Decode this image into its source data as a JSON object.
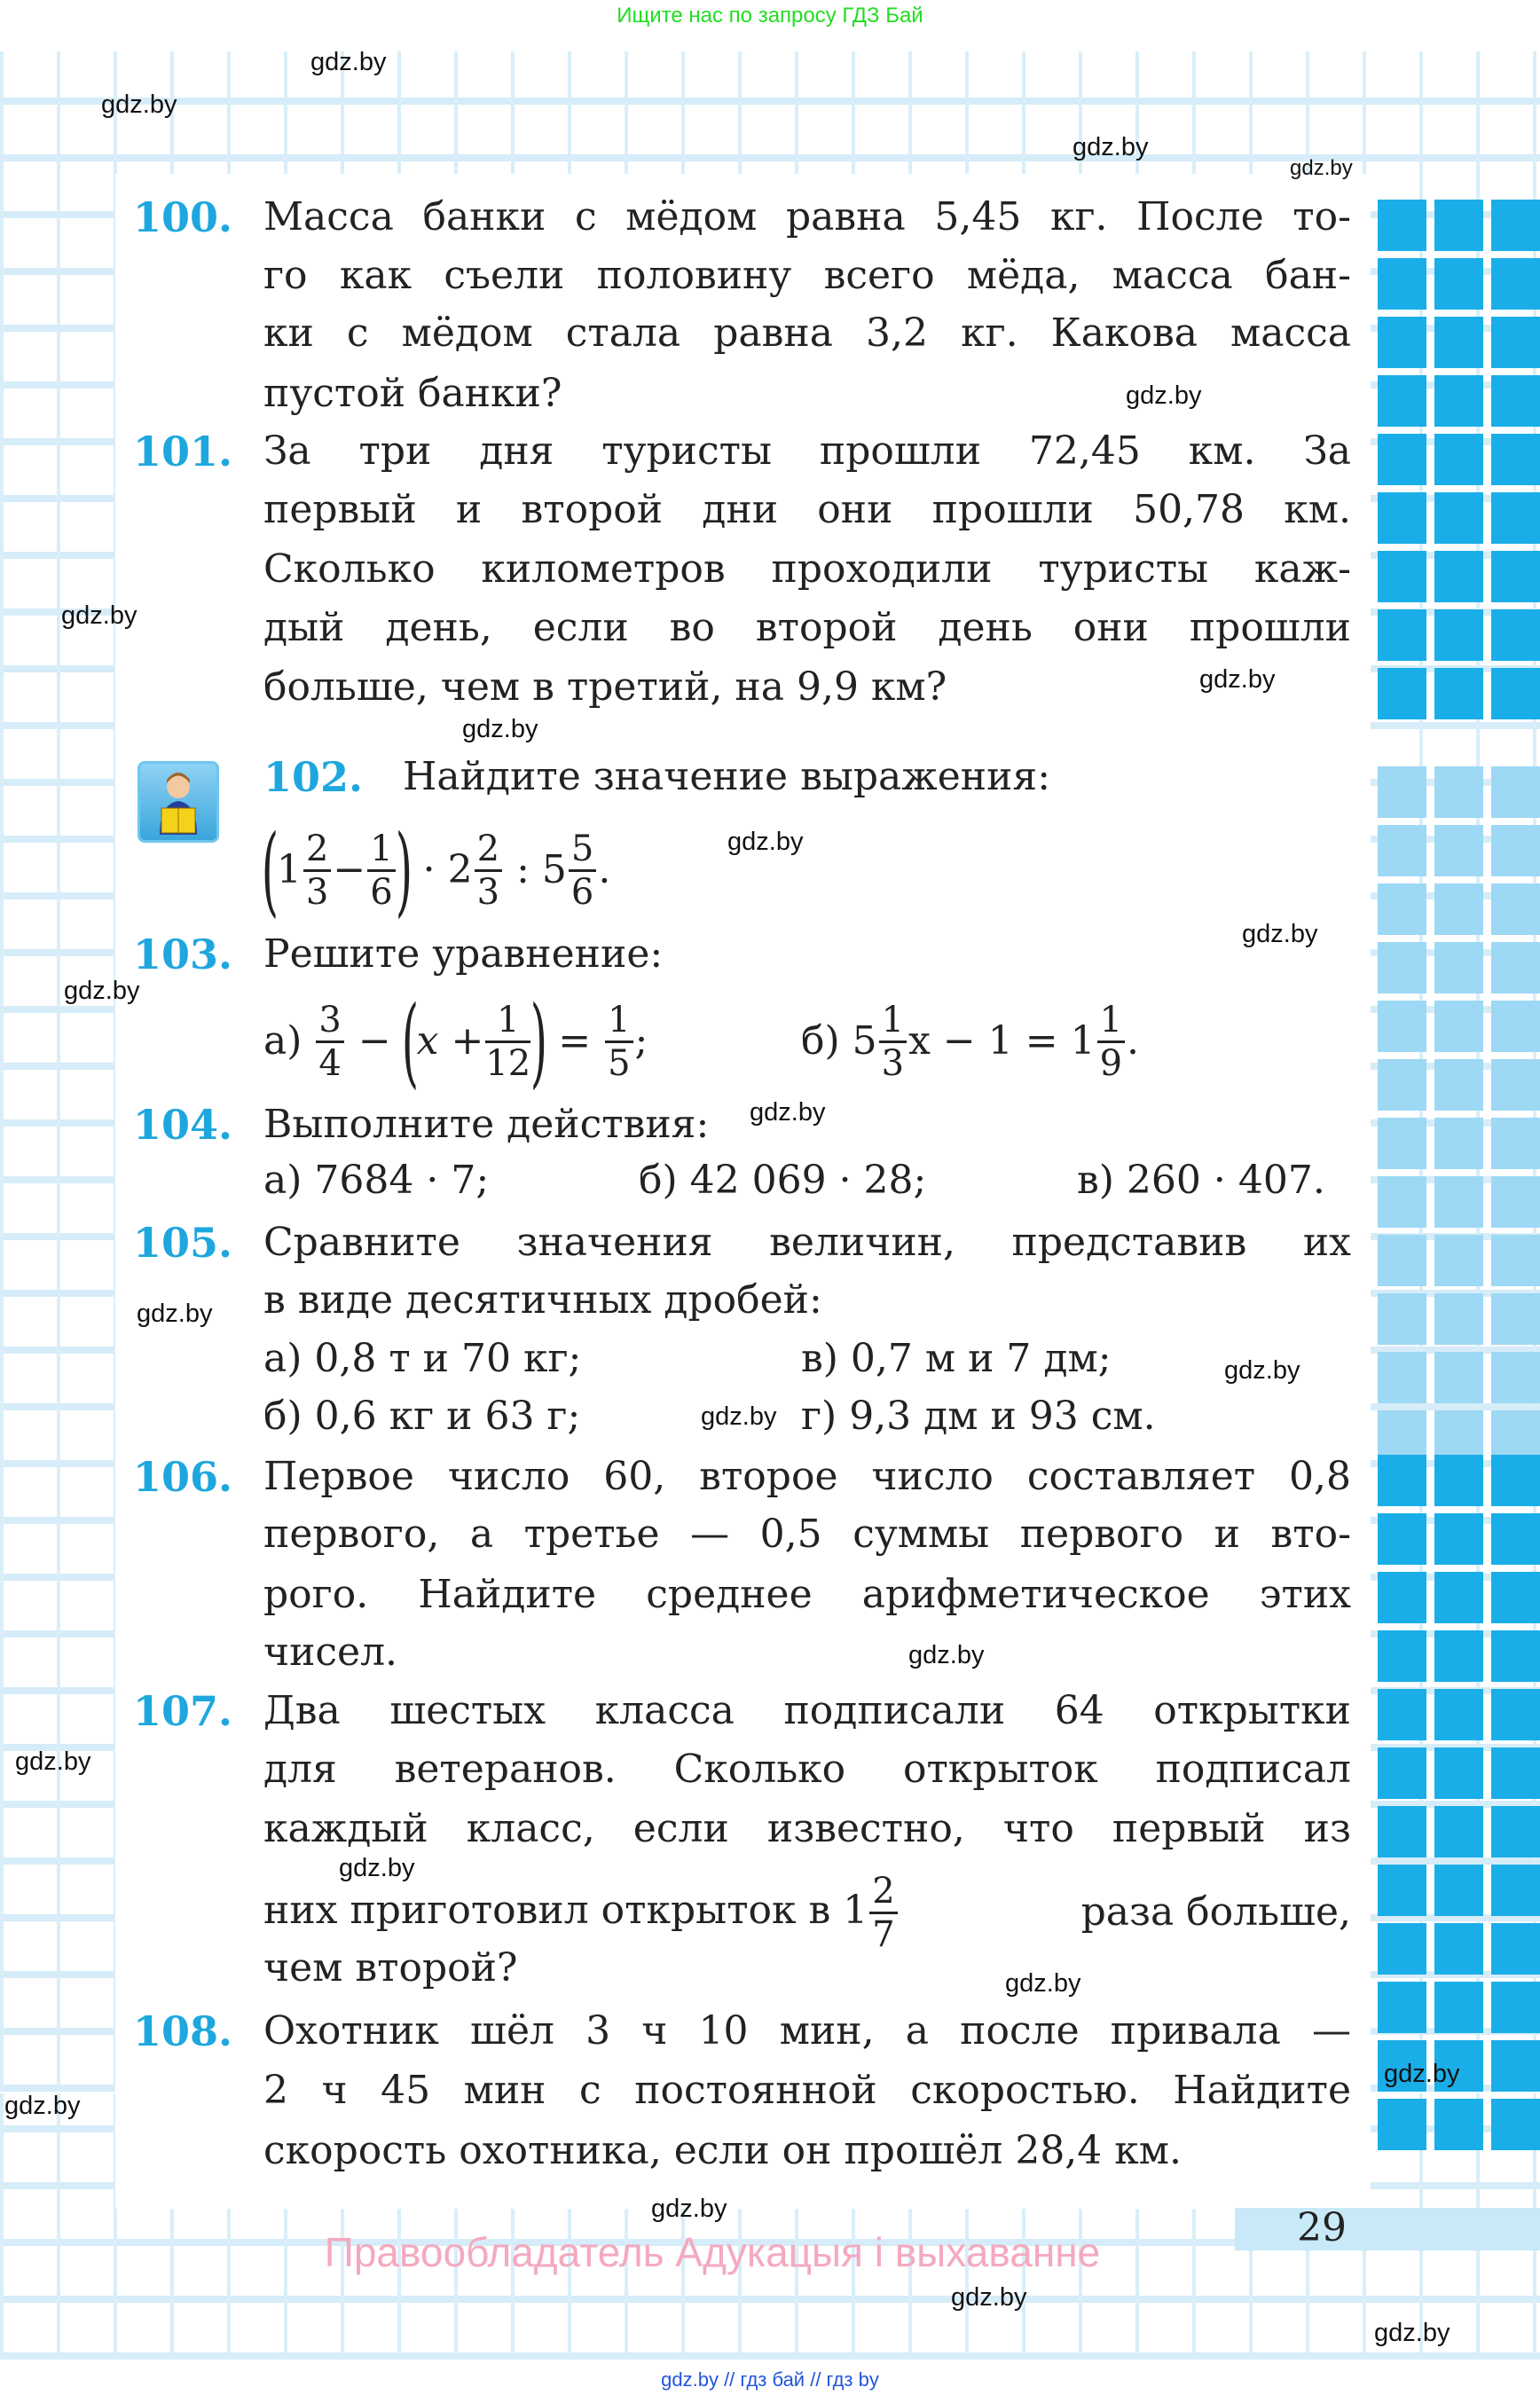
{
  "top_banner": "Ищите нас по запросу ГДЗ Бай",
  "bottom_banner": "gdz.by  //  гдз бай  //  гдз by",
  "watermark": "gdz.by",
  "colors": {
    "number": "#1ea7de",
    "square_dark": "#1aaee8",
    "square_light": "#9dd8f5",
    "rights": "#f4a9bf"
  },
  "p100": {
    "num": "100.",
    "lines": [
      "Масса банки с мёдом равна 5,45 кг. После то-",
      "го как съели половину всего мёда, масса бан-",
      "ки с мёдом стала равна 3,2 кг. Какова масса",
      "пустой банки?"
    ]
  },
  "p101": {
    "num": "101.",
    "lines": [
      "За три дня туристы прошли 72,45 км. За",
      "первый и второй дни они прошли 50,78 км.",
      "Сколько километров проходили туристы каж-",
      "дый день, если во второй день они прошли",
      "больше, чем в третий, на 9,9 км?"
    ]
  },
  "p102": {
    "num": "102.",
    "icon": "reading-boy-icon",
    "title": "Найдите значение выражения:",
    "expr": {
      "w1": "1",
      "n1": "2",
      "d1": "3",
      "minus": "−",
      "n2": "1",
      "d2": "6",
      "dot": "·",
      "w2": "2",
      "n3": "2",
      "d3": "3",
      "colon": ":",
      "w3": "5",
      "n4": "5",
      "d4": "6",
      "end": "."
    }
  },
  "p103": {
    "num": "103.",
    "title": "Решите уравнение:",
    "a": {
      "label": "а)",
      "n1": "3",
      "d1": "4",
      "minus": "−",
      "x": "x",
      "plus": "+",
      "n2": "1",
      "d2": "12",
      "eq": "=",
      "n3": "1",
      "d3": "5",
      "end": ";"
    },
    "b": {
      "label": "б)",
      "w1": "5",
      "n1": "1",
      "d1": "3",
      "rest": "x − 1 = 1",
      "n2": "1",
      "d2": "9",
      "end": "."
    }
  },
  "p104": {
    "num": "104.",
    "title": "Выполните действия:",
    "items": [
      "а) 7684 · 7;",
      "б) 42 069 · 28;",
      "в) 260 · 407."
    ]
  },
  "p105": {
    "num": "105.",
    "lines": [
      "Сравните значения величин, представив их",
      "в виде десятичных дробей:"
    ],
    "items": [
      "а) 0,8 т и 70 кг;",
      "в) 0,7 м и 7 дм;",
      "б) 0,6 кг и 63 г;",
      "г) 9,3 дм и 93 см."
    ]
  },
  "p106": {
    "num": "106.",
    "lines": [
      "Первое число 60, второе число составляет 0,8",
      "первого, а третье — 0,5 суммы первого и вто-",
      "рого. Найдите среднее арифметическое этих",
      "чисел."
    ]
  },
  "p107": {
    "num": "107.",
    "lines": [
      "Два шестых класса подписали 64 открытки",
      "для ветеранов. Сколько открыток подписал",
      "каждый класс, если известно, что первый из",
      "чем второй?"
    ],
    "frac_line": {
      "pre": "них приготовил открыток в 1",
      "n": "2",
      "d": "7",
      "post": "раза больше,"
    }
  },
  "p108": {
    "num": "108.",
    "lines": [
      "Охотник шёл 3 ч 10 мин, а после привала —",
      "2 ч 45 мин с постоянной скоростью. Найдите",
      "скорость охотника, если он прошёл 28,4 км."
    ]
  },
  "page_number": "29",
  "rights": "Правообладатель Адукацыя і выхаванне"
}
